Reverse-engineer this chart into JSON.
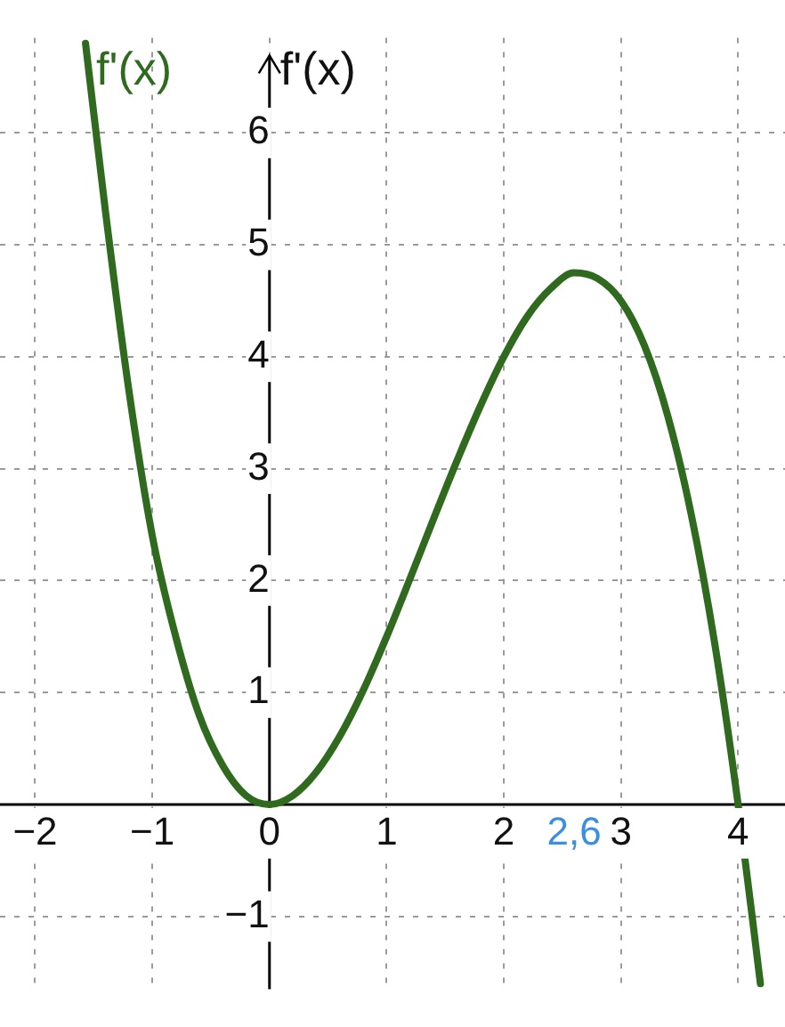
{
  "chart_data": {
    "type": "line",
    "ylabel": "f'(x)",
    "x": [
      -1.57,
      -1.4,
      -1.2,
      -1,
      -0.8,
      -0.6,
      -0.4,
      -0.2,
      0,
      0.2,
      0.4,
      0.6,
      0.8,
      1,
      1.2,
      1.4,
      1.6,
      1.8,
      2,
      2.2,
      2.4,
      2.6,
      2.8,
      3,
      3.2,
      3.4,
      3.6,
      3.8,
      4,
      4.19
    ],
    "series": [
      {
        "name": "f'(x)",
        "color": "#2f6a1f",
        "values": [
          6.8,
          5.3,
          3.7,
          2.4,
          1.5,
          0.8,
          0.35,
          0.08,
          0,
          0.08,
          0.29,
          0.61,
          1.02,
          1.5,
          2.02,
          2.55,
          3.07,
          3.56,
          4,
          4.36,
          4.61,
          4.75,
          4.7,
          4.5,
          4.1,
          3.47,
          2.59,
          1.44,
          0,
          -1.6
        ]
      }
    ],
    "xlim": [
      -2.3,
      4.4
    ],
    "ylim": [
      -1.65,
      6.85
    ],
    "xticks": [
      {
        "value": -2,
        "label": "−2"
      },
      {
        "value": -1,
        "label": "−1"
      },
      0,
      1,
      2,
      {
        "value": 2.6,
        "label": "2,6"
      },
      3,
      4
    ],
    "yticks": [
      {
        "value": -1,
        "label": "−1"
      },
      1,
      2,
      3,
      4,
      5,
      6
    ],
    "grid": true,
    "legend": false,
    "marker": "none",
    "line_style": "solid"
  }
}
